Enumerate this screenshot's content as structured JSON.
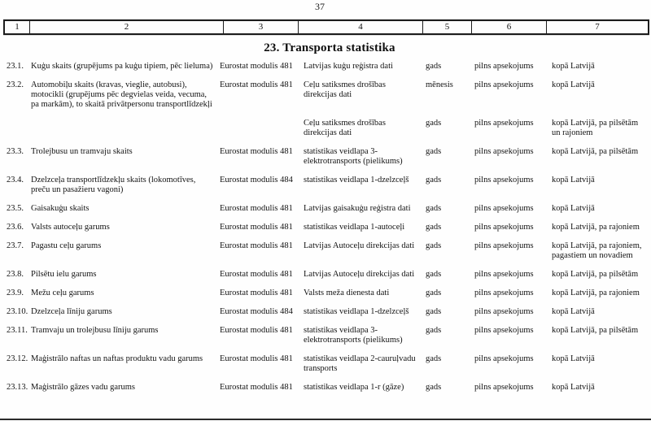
{
  "page": {
    "number": "37"
  },
  "table": {
    "section_title": "23. Transporta statistika",
    "header_cols": [
      "1",
      "2",
      "3",
      "4",
      "5",
      "6",
      "7"
    ],
    "rows": [
      {
        "num": "23.1.",
        "name": "Kuģu skaits (grupējums pa kuģu tipiem, pēc lieluma)",
        "module": "Eurostat modulis 481",
        "source": "Latvijas kuģu reģistra dati",
        "period": "gads",
        "coverage": "pilns apsekojums",
        "breakdown": "kopā Latvijā"
      },
      {
        "num": "23.2.",
        "name": "Automobiļu skaits (kravas, vieglie, autobusi), motocikli (grupējums pēc degvielas veida, vecuma, pa markām), to skaitā privātpersonu transportlīdzekļi",
        "module": "Eurostat modulis 481",
        "source": "Ceļu satiksmes drošības direkcijas dati",
        "period": "mēnesis",
        "coverage": "pilns apsekojums",
        "breakdown": "kopā Latvijā"
      },
      {
        "num": "",
        "name": "",
        "module": "",
        "source": "Ceļu satiksmes drošības direkcijas dati",
        "period": "gads",
        "coverage": "pilns apsekojums",
        "breakdown": "kopā Latvijā, pa pilsētām un rajoniem"
      },
      {
        "num": "23.3.",
        "name": "Trolejbusu un tramvaju skaits",
        "module": "Eurostat modulis 481",
        "source": "statistikas veidlapa 3-elektrotransports (pielikums)",
        "period": "gads",
        "coverage": "pilns apsekojums",
        "breakdown": "kopā Latvijā, pa pilsētām"
      },
      {
        "num": "23.4.",
        "name": "Dzelzceļa transportlīdzekļu skaits (lokomotīves, preču un pasažieru vagoni)",
        "module": "Eurostat modulis 484",
        "source": "statistikas veidlapa 1-dzelzceļš",
        "period": "gads",
        "coverage": "pilns apsekojums",
        "breakdown": "kopā Latvijā"
      },
      {
        "num": "23.5.",
        "name": "Gaisakuģu skaits",
        "module": "Eurostat modulis 481",
        "source": "Latvijas gaisakuģu reģistra dati",
        "period": "gads",
        "coverage": "pilns apsekojums",
        "breakdown": "kopā Latvijā"
      },
      {
        "num": "23.6.",
        "name": "Valsts autoceļu garums",
        "module": "Eurostat modulis 481",
        "source": "statistikas veidlapa 1-autoceļi",
        "period": "gads",
        "coverage": "pilns apsekojums",
        "breakdown": "kopā Latvijā, pa rajoniem"
      },
      {
        "num": "23.7.",
        "name": "Pagastu ceļu garums",
        "module": "Eurostat modulis 481",
        "source": "Latvijas Autoceļu direkcijas dati",
        "period": "gads",
        "coverage": "pilns apsekojums",
        "breakdown": "kopā Latvijā, pa rajoniem, pagastiem un novadiem"
      },
      {
        "num": "23.8.",
        "name": "Pilsētu ielu garums",
        "module": "Eurostat modulis 481",
        "source": "Latvijas Autoceļu direkcijas dati",
        "period": "gads",
        "coverage": "pilns apsekojums",
        "breakdown": "kopā Latvijā, pa pilsētām"
      },
      {
        "num": "23.9.",
        "name": "Mežu ceļu garums",
        "module": "Eurostat modulis 481",
        "source": "Valsts meža dienesta dati",
        "period": "gads",
        "coverage": "pilns apsekojums",
        "breakdown": "kopā Latvijā, pa rajoniem"
      },
      {
        "num": "23.10.",
        "name": "Dzelzceļa līniju garums",
        "module": "Eurostat modulis 484",
        "source": "statistikas veidlapa 1-dzelzceļš",
        "period": "gads",
        "coverage": "pilns apsekojums",
        "breakdown": "kopā Latvijā"
      },
      {
        "num": "23.11.",
        "name": "Tramvaju un trolejbusu līniju garums",
        "module": "Eurostat modulis 481",
        "source": "statistikas veidlapa 3-elektrotransports (pielikums)",
        "period": "gads",
        "coverage": "pilns apsekojums",
        "breakdown": "kopā Latvijā, pa pilsētām"
      },
      {
        "num": "23.12.",
        "name": "Maģistrālo naftas un naftas produktu vadu garums",
        "module": "Eurostat modulis 481",
        "source": "statistikas veidlapa 2-cauruļvadu transports",
        "period": "gads",
        "coverage": "pilns apsekojums",
        "breakdown": "kopā Latvijā"
      },
      {
        "num": "23.13.",
        "name": "Maģistrālo gāzes vadu garums",
        "module": "Eurostat modulis 481",
        "source": "statistikas veidlapa 1-r (gāze)",
        "period": "gads",
        "coverage": "pilns apsekojums",
        "breakdown": "kopā Latvijā"
      }
    ]
  }
}
